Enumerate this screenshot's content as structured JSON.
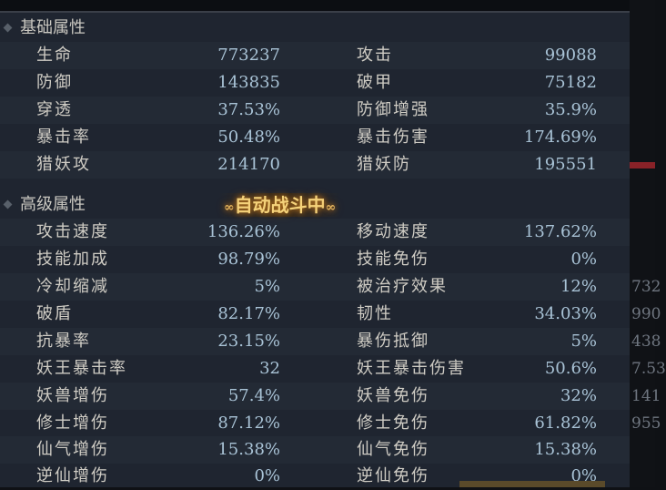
{
  "basic": {
    "title": "基础属性",
    "rows": [
      {
        "l1": "生命",
        "v1": "773237",
        "l2": "攻击",
        "v2": "99088"
      },
      {
        "l1": "防御",
        "v1": "143835",
        "l2": "破甲",
        "v2": "75182"
      },
      {
        "l1": "穿透",
        "v1": "37.53%",
        "l2": "防御增强",
        "v2": "35.9%"
      },
      {
        "l1": "暴击率",
        "v1": "50.48%",
        "l2": "暴击伤害",
        "v2": "174.69%"
      },
      {
        "l1": "猎妖攻",
        "v1": "214170",
        "l2": "猎妖防",
        "v2": "195551"
      }
    ]
  },
  "advanced": {
    "title": "高级属性",
    "rows": [
      {
        "l1": "攻击速度",
        "v1": "136.26%",
        "l2": "移动速度",
        "v2": "137.62%"
      },
      {
        "l1": "技能加成",
        "v1": "98.79%",
        "l2": "技能免伤",
        "v2": "0%"
      },
      {
        "l1": "冷却缩减",
        "v1": "5%",
        "l2": "被治疗效果",
        "v2": "12%"
      },
      {
        "l1": "破盾",
        "v1": "82.17%",
        "l2": "韧性",
        "v2": "34.03%"
      },
      {
        "l1": "抗暴率",
        "v1": "23.15%",
        "l2": "暴伤抵御",
        "v2": "5%"
      },
      {
        "l1": "妖王暴击率",
        "v1": "32",
        "l2": "妖王暴击伤害",
        "v2": "50.6%"
      },
      {
        "l1": "妖兽增伤",
        "v1": "57.4%",
        "l2": "妖兽免伤",
        "v2": "32%"
      },
      {
        "l1": "修士增伤",
        "v1": "87.12%",
        "l2": "修士免伤",
        "v2": "61.82%"
      },
      {
        "l1": "仙气增伤",
        "v1": "15.38%",
        "l2": "仙气免伤",
        "v2": "15.38%"
      },
      {
        "l1": "逆仙增伤",
        "v1": "0%",
        "l2": "逆仙免伤",
        "v2": "0%"
      }
    ]
  },
  "banner": {
    "text": "自动战斗中",
    "left": "∞",
    "right": "∞"
  },
  "background_values": [
    "732",
    "990",
    "438",
    "7.53",
    "141",
    "955"
  ]
}
